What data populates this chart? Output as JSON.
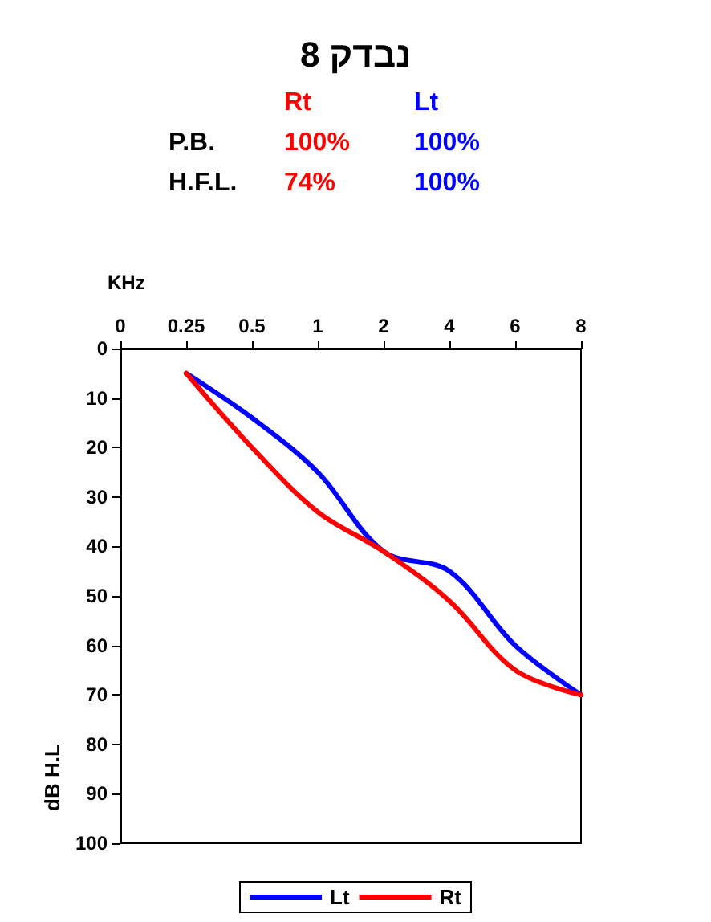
{
  "chart_data": {
    "type": "line",
    "title": "נבדק 8",
    "xlabel": "KHz",
    "ylabel": "dB H.L",
    "annotations": [
      "Rt",
      "Lt",
      "P.B.",
      "100%",
      "100%",
      "H.F.L.",
      "74%",
      "100%"
    ],
    "categories": [
      "0",
      "0.25",
      "0.5",
      "1",
      "2",
      "4",
      "6",
      "8"
    ],
    "series": [
      {
        "name": "Lt",
        "color": "#0000ff",
        "values": [
          null,
          5,
          14,
          25,
          41,
          45,
          60,
          70
        ]
      },
      {
        "name": "Rt",
        "color": "#ff0000",
        "values": [
          null,
          5,
          20,
          33,
          41,
          51,
          65,
          70
        ]
      }
    ],
    "ylim": [
      100,
      0
    ],
    "yticks": [
      0,
      10,
      20,
      30,
      40,
      50,
      60,
      70,
      80,
      90,
      100
    ],
    "grid": false,
    "legend": "bottom",
    "marker": "none",
    "line_style": "solid"
  }
}
